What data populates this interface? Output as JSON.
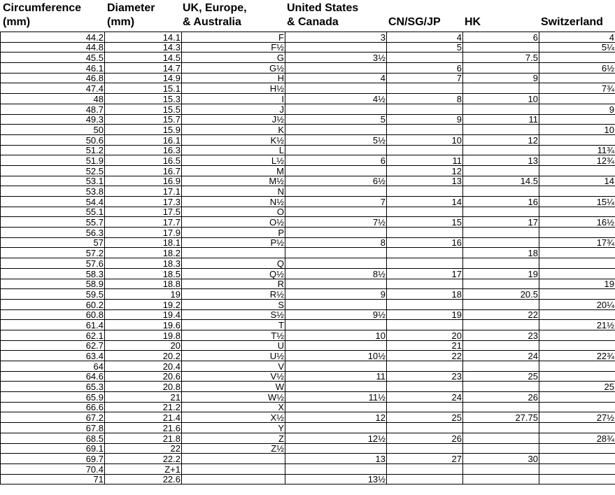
{
  "headers": {
    "circumference": "Circumference\n(mm)",
    "diameter": "Diameter\n(mm)",
    "uk": "UK, Europe,\n& Australia",
    "us": "United States\n& Canada",
    "cn": "CN/SG/JP",
    "hk": "HK",
    "ch": "Switzerland"
  },
  "rows": [
    [
      "44.2",
      "14.1",
      "F",
      "3",
      "4",
      "6",
      "4"
    ],
    [
      "44.8",
      "14.3",
      "F½",
      "",
      "5",
      "",
      "5¼"
    ],
    [
      "45.5",
      "14.5",
      "G",
      "3½",
      "",
      "7.5",
      ""
    ],
    [
      "46.1",
      "14.7",
      "G½",
      "",
      "6",
      "",
      "6½"
    ],
    [
      "46.8",
      "14.9",
      "H",
      "4",
      "7",
      "9",
      ""
    ],
    [
      "47.4",
      "15.1",
      "H½",
      "",
      "",
      "",
      "7¾"
    ],
    [
      "48",
      "15.3",
      "I",
      "4½",
      "8",
      "10",
      ""
    ],
    [
      "48.7",
      "15.5",
      "J",
      "",
      "",
      "",
      "9"
    ],
    [
      "49.3",
      "15.7",
      "J½",
      "5",
      "9",
      "11",
      ""
    ],
    [
      "50",
      "15.9",
      "K",
      "",
      "",
      "",
      "10"
    ],
    [
      "50.6",
      "16.1",
      "K½",
      "5½",
      "10",
      "12",
      ""
    ],
    [
      "51.2",
      "16.3",
      "L",
      "",
      "",
      "",
      "11¾"
    ],
    [
      "51.9",
      "16.5",
      "L½",
      "6",
      "11",
      "13",
      "12¾"
    ],
    [
      "52.5",
      "16.7",
      "M",
      "",
      "12",
      "",
      ""
    ],
    [
      "53.1",
      "16.9",
      "M½",
      "6½",
      "13",
      "14.5",
      "14"
    ],
    [
      "53.8",
      "17.1",
      "N",
      "",
      "",
      "",
      ""
    ],
    [
      "54.4",
      "17.3",
      "N½",
      "7",
      "14",
      "16",
      "15¼"
    ],
    [
      "55.1",
      "17.5",
      "O",
      "",
      "",
      "",
      ""
    ],
    [
      "55.7",
      "17.7",
      "O½",
      "7½",
      "15",
      "17",
      "16½"
    ],
    [
      "56.3",
      "17.9",
      "P",
      "",
      "",
      "",
      ""
    ],
    [
      "57",
      "18.1",
      "P½",
      "8",
      "16",
      "",
      "17¾"
    ],
    [
      "57.2",
      "18.2",
      "",
      "",
      "",
      "18",
      ""
    ],
    [
      "57.6",
      "18.3",
      "Q",
      "",
      "",
      "",
      ""
    ],
    [
      "58.3",
      "18.5",
      "Q½",
      "8½",
      "17",
      "19",
      ""
    ],
    [
      "58.9",
      "18.8",
      "R",
      "",
      "",
      "",
      "19"
    ],
    [
      "59.5",
      "19",
      "R½",
      "9",
      "18",
      "20.5",
      ""
    ],
    [
      "60.2",
      "19.2",
      "S",
      "",
      "",
      "",
      "20¼"
    ],
    [
      "60.8",
      "19.4",
      "S½",
      "9½",
      "19",
      "22",
      ""
    ],
    [
      "61.4",
      "19.6",
      "T",
      "",
      "",
      "",
      "21½"
    ],
    [
      "62.1",
      "19.8",
      "T½",
      "10",
      "20",
      "23",
      ""
    ],
    [
      "62.7",
      "20",
      "U",
      "",
      "21",
      "",
      ""
    ],
    [
      "63.4",
      "20.2",
      "U½",
      "10½",
      "22",
      "24",
      "22¾"
    ],
    [
      "64",
      "20.4",
      "V",
      "",
      "",
      "",
      ""
    ],
    [
      "64.6",
      "20.6",
      "V½",
      "11",
      "23",
      "25",
      ""
    ],
    [
      "65.3",
      "20.8",
      "W",
      "",
      "",
      "",
      "25"
    ],
    [
      "65.9",
      "21",
      "W½",
      "11½",
      "24",
      "26",
      ""
    ],
    [
      "66.6",
      "21.2",
      "X",
      "",
      "",
      "",
      ""
    ],
    [
      "67.2",
      "21.4",
      "X½",
      "12",
      "25",
      "27.75",
      "27½"
    ],
    [
      "67.8",
      "21.6",
      "Y",
      "",
      "",
      "",
      ""
    ],
    [
      "68.5",
      "21.8",
      "Z",
      "12½",
      "26",
      "",
      "28¾"
    ],
    [
      "69.1",
      "22",
      "Z½",
      "",
      "",
      "",
      ""
    ],
    [
      "69.7",
      "22.2",
      "",
      "13",
      "27",
      "30",
      ""
    ],
    [
      "70.4",
      "Z+1",
      "",
      "",
      "",
      "",
      ""
    ],
    [
      "71",
      "22.6",
      "",
      "13½",
      "",
      "",
      ""
    ]
  ]
}
